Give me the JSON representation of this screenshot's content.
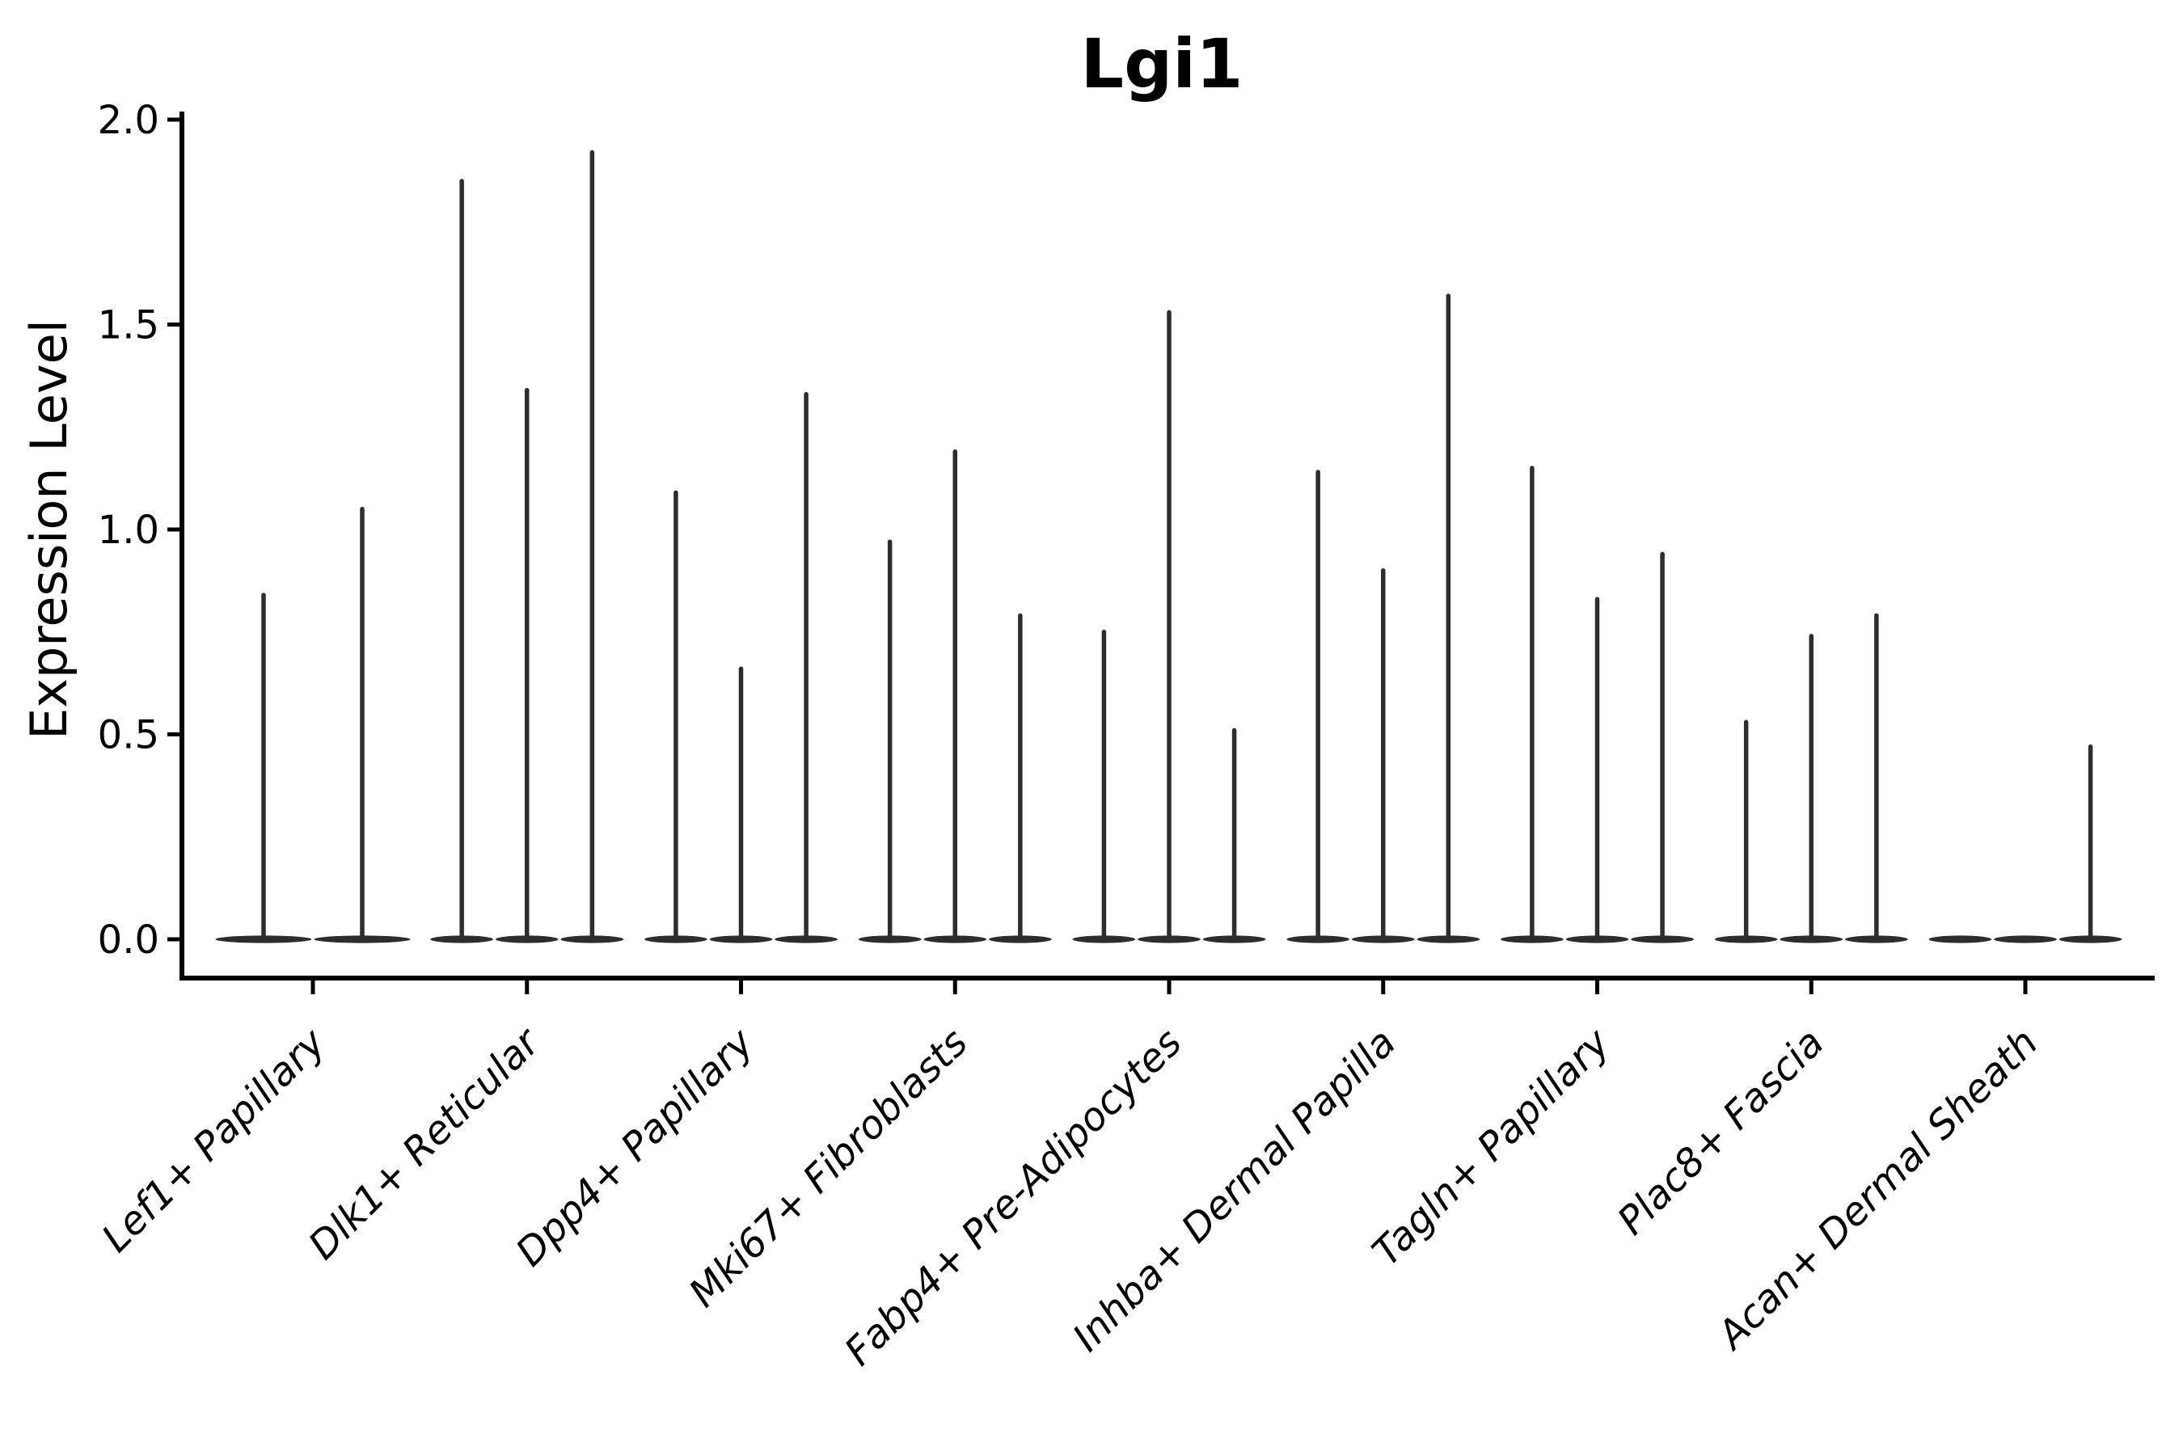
{
  "chart_data": {
    "type": "violin",
    "title": "Lgi1",
    "ylabel": "Expression Level",
    "xlabel": "",
    "ylim": [
      -0.09,
      2.02
    ],
    "yticks": [
      0.0,
      0.5,
      1.0,
      1.5,
      2.0
    ],
    "ytick_labels": [
      "0.0",
      "0.5",
      "1.0",
      "1.5",
      "2.0"
    ],
    "legend": "none",
    "grid": false,
    "orientation": "vertical",
    "description": "Single-cell expression violin plot; each category holds narrow sub-violins flattened at 0 with a thin density spike up to the maximum expression value.",
    "categories": [
      "Lef1+ Papillary",
      "Dlk1+ Reticular",
      "Dpp4+ Papillary",
      "Mki67+ Fibroblasts",
      "Fabp4+ Pre-Adipocytes",
      "Inhba+ Dermal Papilla",
      "Tagln+ Papillary",
      "Plac8+ Fascia",
      "Acan+ Dermal Sheath"
    ],
    "groups": [
      {
        "label": "Lef1+ Papillary",
        "violin_maxima": [
          0.84,
          1.05
        ]
      },
      {
        "label": "Dlk1+ Reticular",
        "violin_maxima": [
          1.85,
          1.34,
          1.92
        ]
      },
      {
        "label": "Dpp4+ Papillary",
        "violin_maxima": [
          1.09,
          0.66,
          1.33
        ]
      },
      {
        "label": "Mki67+ Fibroblasts",
        "violin_maxima": [
          0.97,
          1.19,
          0.79
        ]
      },
      {
        "label": "Fabp4+ Pre-Adipocytes",
        "violin_maxima": [
          0.75,
          1.53,
          0.51
        ]
      },
      {
        "label": "Inhba+ Dermal Papilla",
        "violin_maxima": [
          1.14,
          0.9,
          1.57
        ]
      },
      {
        "label": "Tagln+ Papillary",
        "violin_maxima": [
          1.15,
          0.83,
          0.94
        ]
      },
      {
        "label": "Plac8+ Fascia",
        "violin_maxima": [
          0.53,
          0.74,
          0.79
        ]
      },
      {
        "label": "Acan+ Dermal Sheath",
        "violin_maxima": [
          0.0,
          0.0,
          0.47
        ]
      }
    ],
    "colors": {
      "violin": "#2d2d2d",
      "axis": "#000000",
      "text": "#000000",
      "background": "#ffffff"
    }
  }
}
